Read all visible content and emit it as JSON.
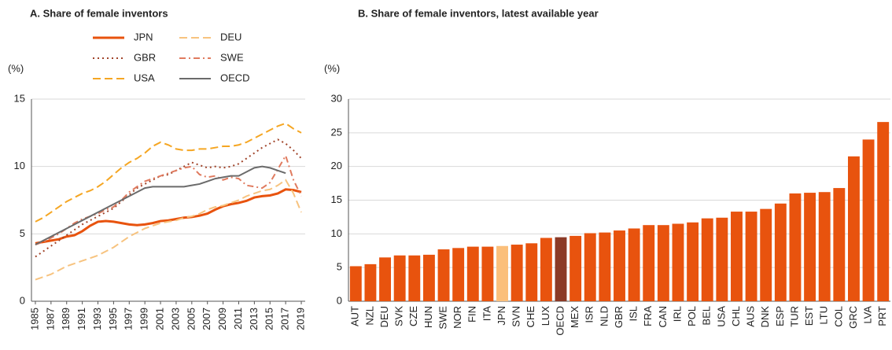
{
  "chart_data": [
    {
      "type": "line",
      "title": "A. Share of female inventors",
      "y_label": "(%)",
      "x": [
        1985,
        1986,
        1987,
        1988,
        1989,
        1990,
        1991,
        1992,
        1993,
        1994,
        1995,
        1996,
        1997,
        1998,
        1999,
        2000,
        2001,
        2002,
        2003,
        2004,
        2005,
        2006,
        2007,
        2008,
        2009,
        2010,
        2011,
        2012,
        2013,
        2014,
        2015,
        2016,
        2017,
        2018,
        2019
      ],
      "xlim": [
        1984.5,
        2019.5
      ],
      "xticks": [
        1985,
        1987,
        1989,
        1991,
        1993,
        1995,
        1997,
        1999,
        2001,
        2003,
        2005,
        2007,
        2009,
        2011,
        2013,
        2015,
        2017,
        2019
      ],
      "ylim": [
        0,
        15
      ],
      "yticks": [
        0,
        5,
        10,
        15
      ],
      "grid": true,
      "series": [
        {
          "name": "JPN",
          "color": "#e8530e",
          "style": "solid",
          "values": [
            4.3,
            4.4,
            4.5,
            4.6,
            4.8,
            4.9,
            5.2,
            5.6,
            5.9,
            5.95,
            5.9,
            5.8,
            5.7,
            5.65,
            5.7,
            5.8,
            5.95,
            6.0,
            6.1,
            6.2,
            6.25,
            6.35,
            6.5,
            6.8,
            7.05,
            7.2,
            7.3,
            7.45,
            7.7,
            7.8,
            7.85,
            8.0,
            8.3,
            8.25,
            8.1
          ]
        },
        {
          "name": "GBR",
          "color": "#a0442a",
          "style": "dotted",
          "values": [
            3.3,
            3.7,
            4.1,
            4.5,
            4.9,
            5.3,
            5.7,
            6.0,
            6.3,
            6.6,
            6.9,
            7.4,
            7.9,
            8.4,
            8.7,
            9.0,
            9.3,
            9.4,
            9.7,
            10.0,
            10.3,
            10.1,
            9.9,
            10.0,
            9.9,
            10.0,
            10.2,
            10.6,
            11.0,
            11.4,
            11.7,
            12.0,
            11.7,
            11.2,
            10.6
          ]
        },
        {
          "name": "USA",
          "color": "#f5a623",
          "style": "dashed",
          "values": [
            5.9,
            6.2,
            6.6,
            7.0,
            7.4,
            7.7,
            8.0,
            8.2,
            8.5,
            8.9,
            9.4,
            9.9,
            10.3,
            10.6,
            11.0,
            11.5,
            11.8,
            11.6,
            11.3,
            11.2,
            11.2,
            11.3,
            11.3,
            11.4,
            11.5,
            11.5,
            11.6,
            11.8,
            12.1,
            12.4,
            12.7,
            13.0,
            13.2,
            12.8,
            12.5
          ]
        },
        {
          "name": "DEU",
          "color": "#f7c37f",
          "style": "dashed",
          "values": [
            1.6,
            1.8,
            2.0,
            2.3,
            2.6,
            2.8,
            3.0,
            3.2,
            3.4,
            3.7,
            4.0,
            4.4,
            4.8,
            5.1,
            5.4,
            5.6,
            5.8,
            5.9,
            6.0,
            6.2,
            6.3,
            6.5,
            6.8,
            7.0,
            7.1,
            7.3,
            7.5,
            7.8,
            8.0,
            8.2,
            8.3,
            8.6,
            9.0,
            8.0,
            6.6
          ]
        },
        {
          "name": "SWE",
          "color": "#e07b5f",
          "style": "dashdot",
          "values": [
            4.2,
            4.4,
            4.7,
            5.0,
            5.4,
            5.8,
            6.1,
            6.3,
            6.5,
            6.8,
            7.0,
            7.5,
            8.1,
            8.5,
            8.9,
            9.1,
            9.3,
            9.5,
            9.7,
            9.9,
            10.0,
            9.4,
            9.2,
            9.3,
            9.0,
            9.2,
            9.1,
            8.6,
            8.5,
            8.4,
            8.8,
            9.8,
            10.8,
            9.0,
            7.8
          ]
        },
        {
          "name": "OECD",
          "color": "#6b6b6b",
          "style": "solid",
          "values": [
            4.2,
            4.5,
            4.8,
            5.1,
            5.4,
            5.7,
            6.0,
            6.3,
            6.6,
            6.9,
            7.2,
            7.5,
            7.8,
            8.1,
            8.4,
            8.5,
            8.5,
            8.5,
            8.5,
            8.5,
            8.6,
            8.7,
            8.9,
            9.1,
            9.2,
            9.3,
            9.3,
            9.6,
            9.9,
            10.0,
            9.9,
            9.7,
            9.5,
            null,
            null
          ]
        }
      ]
    },
    {
      "type": "bar",
      "title": "B. Share of female inventors, latest available year",
      "y_label": "(%)",
      "categories": [
        "AUT",
        "NZL",
        "DEU",
        "SVK",
        "CZE",
        "HUN",
        "SWE",
        "NOR",
        "FIN",
        "ITA",
        "JPN",
        "SVN",
        "CHE",
        "LUX",
        "OECD",
        "MEX",
        "ISR",
        "NLD",
        "GBR",
        "ISL",
        "FRA",
        "CAN",
        "IRL",
        "POL",
        "BEL",
        "USA",
        "CHL",
        "AUS",
        "DNK",
        "ESP",
        "TUR",
        "EST",
        "LTU",
        "COL",
        "GRC",
        "LVA",
        "PRT"
      ],
      "values": [
        5.2,
        5.5,
        6.5,
        6.8,
        6.8,
        6.9,
        7.7,
        7.9,
        8.1,
        8.1,
        8.2,
        8.4,
        8.6,
        9.4,
        9.5,
        9.7,
        10.1,
        10.2,
        10.5,
        10.8,
        11.3,
        11.3,
        11.5,
        11.7,
        12.3,
        12.4,
        13.3,
        13.3,
        13.7,
        14.5,
        16.0,
        16.1,
        16.2,
        16.8,
        21.5,
        24.0,
        26.6
      ],
      "colors": [
        "#e8530e",
        "#e8530e",
        "#e8530e",
        "#e8530e",
        "#e8530e",
        "#e8530e",
        "#e8530e",
        "#e8530e",
        "#e8530e",
        "#e8530e",
        "#fbbf7a",
        "#e8530e",
        "#e8530e",
        "#e8530e",
        "#8b3a26",
        "#e8530e",
        "#e8530e",
        "#e8530e",
        "#e8530e",
        "#e8530e",
        "#e8530e",
        "#e8530e",
        "#e8530e",
        "#e8530e",
        "#e8530e",
        "#e8530e",
        "#e8530e",
        "#e8530e",
        "#e8530e",
        "#e8530e",
        "#e8530e",
        "#e8530e",
        "#e8530e",
        "#e8530e",
        "#e8530e",
        "#e8530e",
        "#e8530e"
      ],
      "ylim": [
        0,
        30
      ],
      "yticks": [
        0,
        5,
        10,
        15,
        20,
        25,
        30
      ],
      "grid": true
    }
  ]
}
